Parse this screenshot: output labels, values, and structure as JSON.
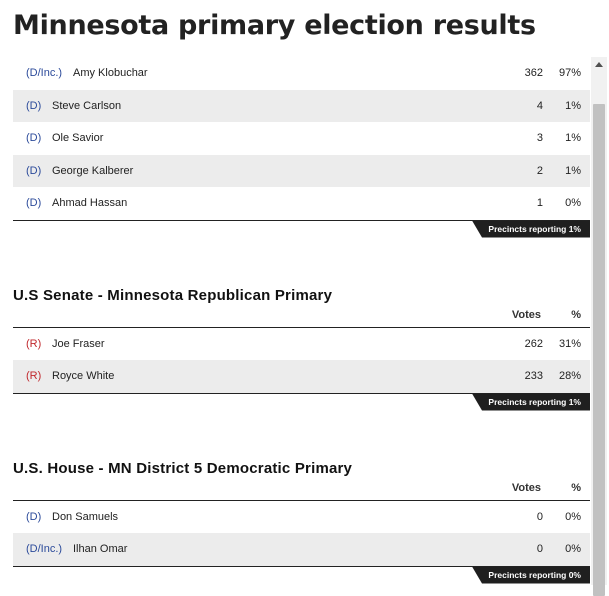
{
  "page": {
    "title": "Minnesota primary election results"
  },
  "races": [
    {
      "heading": "",
      "show_columns": false,
      "columns": {
        "votes": "Votes",
        "pct": "%"
      },
      "candidates": [
        {
          "party": "(D/Inc.)",
          "party_color": "#2b4a9a",
          "name": "Amy Klobuchar",
          "votes": "362",
          "pct": "97%"
        },
        {
          "party": "(D)",
          "party_color": "#2b4a9a",
          "name": "Steve Carlson",
          "votes": "4",
          "pct": "1%"
        },
        {
          "party": "(D)",
          "party_color": "#2b4a9a",
          "name": "Ole Savior",
          "votes": "3",
          "pct": "1%"
        },
        {
          "party": "(D)",
          "party_color": "#2b4a9a",
          "name": "George Kalberer",
          "votes": "2",
          "pct": "1%"
        },
        {
          "party": "(D)",
          "party_color": "#2b4a9a",
          "name": "Ahmad Hassan",
          "votes": "1",
          "pct": "0%"
        }
      ],
      "precincts": "Precincts reporting 1%"
    },
    {
      "heading": "U.S Senate - Minnesota Republican Primary",
      "show_columns": true,
      "columns": {
        "votes": "Votes",
        "pct": "%"
      },
      "candidates": [
        {
          "party": "(R)",
          "party_color": "#c0282d",
          "name": "Joe Fraser",
          "votes": "262",
          "pct": "31%"
        },
        {
          "party": "(R)",
          "party_color": "#c0282d",
          "name": "Royce White",
          "votes": "233",
          "pct": "28%"
        }
      ],
      "precincts": "Precincts reporting 1%"
    },
    {
      "heading": "U.S. House - MN District 5 Democratic Primary",
      "show_columns": true,
      "columns": {
        "votes": "Votes",
        "pct": "%"
      },
      "candidates": [
        {
          "party": "(D)",
          "party_color": "#2b4a9a",
          "name": "Don Samuels",
          "votes": "0",
          "pct": "0%"
        },
        {
          "party": "(D/Inc.)",
          "party_color": "#2b4a9a",
          "name": "Ilhan Omar",
          "votes": "0",
          "pct": "0%"
        }
      ],
      "precincts": "Precincts reporting 0%"
    }
  ],
  "colors": {
    "democrat": "#2b4a9a",
    "republican": "#c0282d",
    "row_alt": "#ececec",
    "precincts_bg": "#1f1f1f"
  },
  "scrollbar": {
    "up_icon": "scroll-up-arrow-icon"
  }
}
